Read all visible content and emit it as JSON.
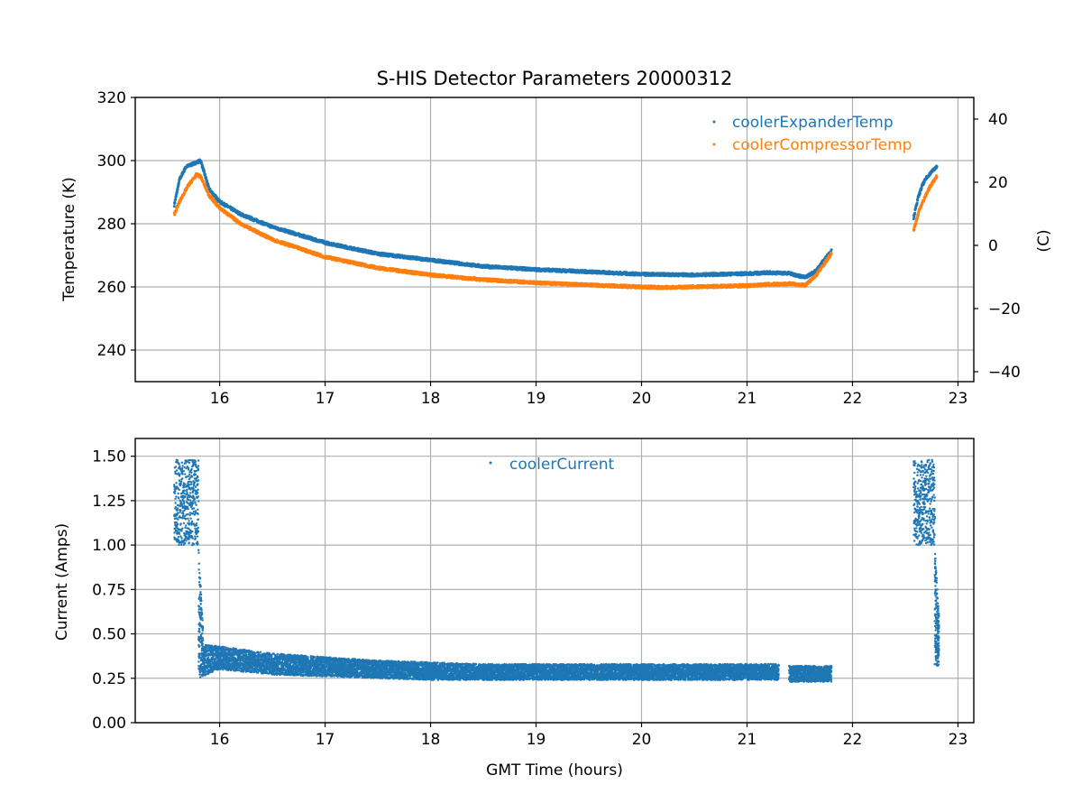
{
  "chart_data": [
    {
      "type": "scatter",
      "title": "S-HIS Detector Parameters 20000312",
      "xlabel": "",
      "ylabel": "Temperature (K)",
      "y2label": "(C)",
      "xlim": [
        15.2,
        23.15
      ],
      "ylim": [
        230,
        320
      ],
      "y2lim": [
        -43.15,
        46.85
      ],
      "xticks": [
        16,
        17,
        18,
        19,
        20,
        21,
        22,
        23
      ],
      "yticks": [
        240,
        260,
        280,
        300,
        320
      ],
      "y2ticks": [
        -40,
        -20,
        0,
        20,
        40
      ],
      "y2tick_labels": [
        "−40",
        "−20",
        "0",
        "20",
        "40"
      ],
      "grid": true,
      "legend_position": "top-right",
      "series": [
        {
          "name": "coolerExpanderTemp",
          "color": "#1f77b4",
          "segments": [
            {
              "x": [
                15.57,
                15.62,
                15.68,
                15.75,
                15.82,
                15.9,
                16.0,
                16.2,
                16.5,
                17.0,
                17.5,
                18.0,
                18.5,
                19.0,
                19.5,
                20.0,
                20.5,
                21.0,
                21.2,
                21.4,
                21.55,
                21.65,
                21.8
              ],
              "y": [
                286,
                294,
                298,
                299,
                300,
                291,
                287,
                283,
                279,
                274,
                270.5,
                268.5,
                266.5,
                265.5,
                264.8,
                264,
                263.8,
                264.2,
                264.5,
                264.3,
                263,
                265,
                271.5
              ]
            },
            {
              "x": [
                22.58,
                22.62,
                22.66,
                22.7,
                22.75,
                22.8
              ],
              "y": [
                282,
                288,
                292,
                294.5,
                296.5,
                298
              ]
            }
          ]
        },
        {
          "name": "coolerCompressorTemp",
          "color": "#ff7f0e",
          "segments": [
            {
              "x": [
                15.57,
                15.62,
                15.7,
                15.78,
                15.82,
                15.9,
                16.0,
                16.2,
                16.5,
                17.0,
                17.5,
                18.0,
                18.5,
                19.0,
                19.5,
                20.0,
                20.2,
                20.5,
                21.0,
                21.2,
                21.4,
                21.55,
                21.65,
                21.8
              ],
              "y": [
                283,
                287,
                292,
                295.5,
                295,
                289,
                285,
                280,
                275,
                269.5,
                266,
                263.8,
                262.3,
                261.3,
                260.6,
                260,
                259.8,
                260,
                260.4,
                260.8,
                261,
                260.5,
                263.5,
                270.5
              ]
            },
            {
              "x": [
                22.58,
                22.63,
                22.68,
                22.73,
                22.8
              ],
              "y": [
                278,
                284,
                288,
                291.5,
                295
              ]
            }
          ]
        }
      ]
    },
    {
      "type": "scatter",
      "title": "",
      "xlabel": "GMT Time (hours)",
      "ylabel": "Current (Amps)",
      "xlim": [
        15.2,
        23.15
      ],
      "ylim": [
        0,
        1.6
      ],
      "xticks": [
        16,
        17,
        18,
        19,
        20,
        21,
        22,
        23
      ],
      "yticks": [
        0.0,
        0.25,
        0.5,
        0.75,
        1.0,
        1.25,
        1.5
      ],
      "ytick_labels": [
        "0.00",
        "0.25",
        "0.50",
        "0.75",
        "1.00",
        "1.25",
        "1.50"
      ],
      "grid": true,
      "legend_position": "top-center",
      "series": [
        {
          "name": "coolerCurrent",
          "color": "#1f77b4",
          "bands": [
            {
              "x": [
                15.57,
                15.8
              ],
              "low": [
                1.0,
                1.0
              ],
              "high": [
                1.48,
                1.48
              ]
            },
            {
              "x": [
                15.8,
                15.85
              ],
              "low": [
                0.25,
                0.25
              ],
              "high": [
                1.0,
                0.45
              ]
            },
            {
              "x": [
                15.85,
                16.0,
                16.5,
                17.0,
                17.5,
                18.0,
                18.5,
                19.0,
                19.5,
                20.0,
                20.5,
                21.0,
                21.3
              ],
              "low": [
                0.26,
                0.3,
                0.27,
                0.26,
                0.25,
                0.24,
                0.24,
                0.24,
                0.24,
                0.24,
                0.24,
                0.24,
                0.24
              ],
              "high": [
                0.44,
                0.43,
                0.39,
                0.37,
                0.35,
                0.34,
                0.33,
                0.33,
                0.33,
                0.33,
                0.33,
                0.33,
                0.33
              ]
            },
            {
              "x": [
                21.4,
                21.8
              ],
              "low": [
                0.23,
                0.23
              ],
              "high": [
                0.32,
                0.32
              ]
            },
            {
              "x": [
                22.58,
                22.78
              ],
              "low": [
                1.0,
                1.0
              ],
              "high": [
                1.48,
                1.48
              ]
            },
            {
              "x": [
                22.78,
                22.82
              ],
              "low": [
                0.32,
                0.32
              ],
              "high": [
                1.0,
                0.6
              ]
            }
          ]
        }
      ]
    }
  ]
}
